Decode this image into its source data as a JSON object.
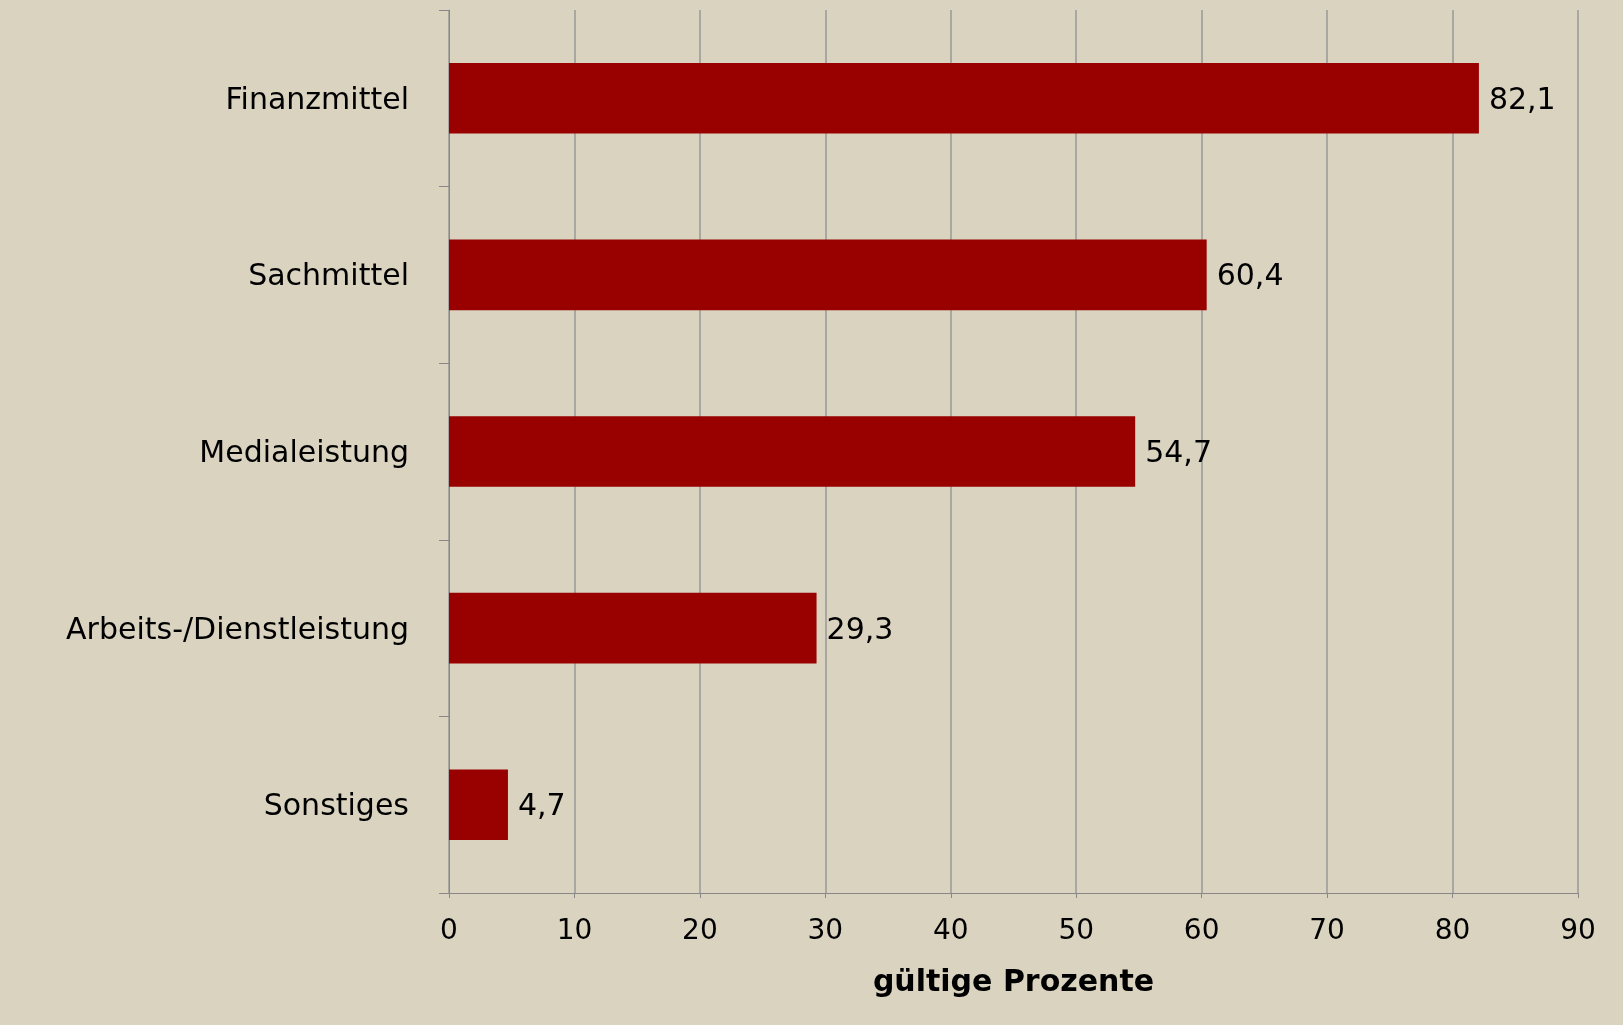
{
  "chart_data": {
    "type": "bar",
    "orientation": "horizontal",
    "xlabel": "gültige Prozente",
    "categories": [
      "Finanzmittel",
      "Sachmittel",
      "Medialeistung",
      "Arbeits-/Dienstleistung",
      "Sonstiges"
    ],
    "values": [
      82.1,
      60.4,
      54.7,
      29.3,
      4.7
    ],
    "value_labels": [
      "82,1",
      "60,4",
      "54,7",
      "29,3",
      "4,7"
    ],
    "color": "#990000",
    "xlim": [
      0,
      90
    ],
    "xticks": [
      0,
      10,
      20,
      30,
      40,
      50,
      60,
      70,
      80,
      90
    ],
    "grid": "x"
  }
}
